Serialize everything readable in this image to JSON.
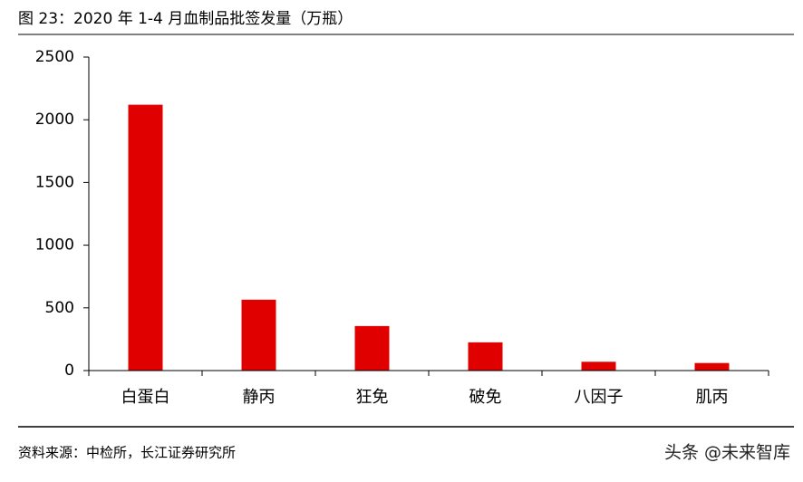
{
  "chart_data": {
    "type": "bar",
    "title": "图 23：2020 年 1-4 月血制品批签发量（万瓶）",
    "categories": [
      "白蛋白",
      "静丙",
      "狂免",
      "破免",
      "八因子",
      "肌丙"
    ],
    "values": [
      2120,
      565,
      355,
      225,
      70,
      60
    ],
    "color": "#e00000",
    "ylim": [
      0,
      2500
    ],
    "yticks": [
      0,
      500,
      1000,
      1500,
      2000,
      2500
    ],
    "source": "资料来源：中检所，长江证券研究所",
    "watermark": "头条 @未来智库"
  }
}
